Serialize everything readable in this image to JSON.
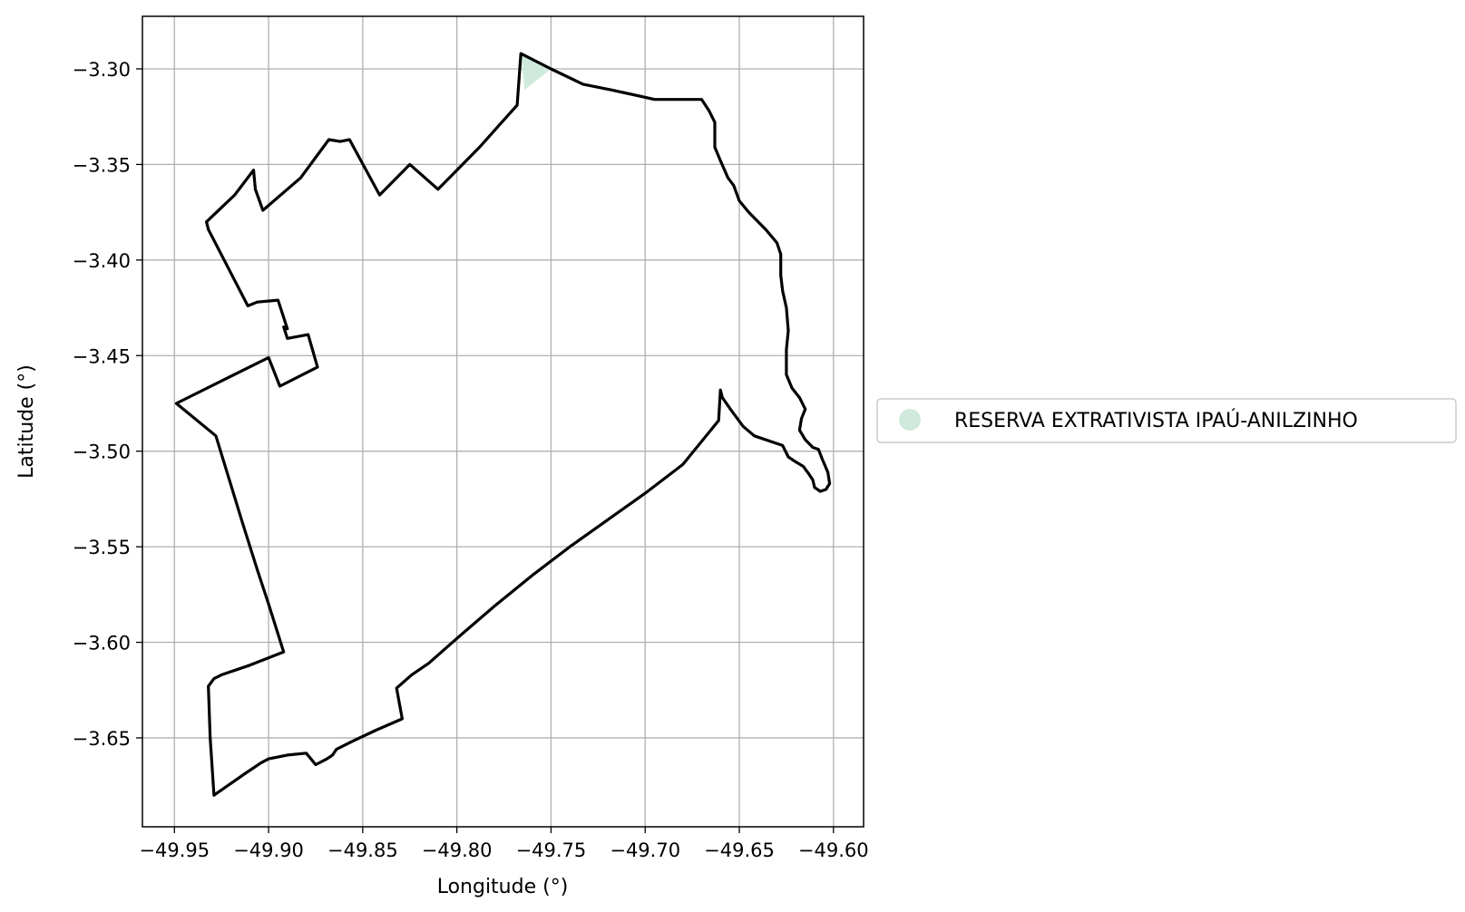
{
  "chart_data": {
    "type": "map",
    "xlabel": "Longitude (°)",
    "ylabel": "Latitude (°)",
    "xlim": [
      -49.967,
      -49.584
    ],
    "ylim": [
      -3.6965,
      -3.2725
    ],
    "x_ticks": [
      -49.95,
      -49.9,
      -49.85,
      -49.8,
      -49.75,
      -49.7,
      -49.65,
      -49.6
    ],
    "x_tick_labels": [
      "−49.95",
      "−49.90",
      "−49.85",
      "−49.80",
      "−49.75",
      "−49.70",
      "−49.65",
      "−49.60"
    ],
    "y_ticks": [
      -3.3,
      -3.35,
      -3.4,
      -3.45,
      -3.5,
      -3.55,
      -3.6,
      -3.65
    ],
    "y_tick_labels": [
      "−3.30",
      "−3.35",
      "−3.40",
      "−3.45",
      "−3.50",
      "−3.55",
      "−3.60",
      "−3.65"
    ],
    "grid": true,
    "legend": {
      "placement": "right",
      "entries": [
        {
          "name": "RESERVA EXTRATIVISTA IPAÚ-ANILZINHO",
          "color": "#cfeadc"
        }
      ]
    },
    "fill_color": "#cfeadc",
    "outline_color": "#000000",
    "filled_area": [
      [
        -49.764,
        -3.311
      ],
      [
        -49.766,
        -3.292
      ],
      [
        -49.75,
        -3.3
      ]
    ],
    "outline": [
      [
        -49.766,
        -3.292
      ],
      [
        -49.75,
        -3.3
      ],
      [
        -49.733,
        -3.308
      ],
      [
        -49.718,
        -3.311
      ],
      [
        -49.704,
        -3.314
      ],
      [
        -49.695,
        -3.316
      ],
      [
        -49.67,
        -3.316
      ],
      [
        -49.666,
        -3.322
      ],
      [
        -49.663,
        -3.328
      ],
      [
        -49.663,
        -3.341
      ],
      [
        -49.66,
        -3.348
      ],
      [
        -49.656,
        -3.357
      ],
      [
        -49.653,
        -3.361
      ],
      [
        -49.65,
        -3.369
      ],
      [
        -49.645,
        -3.375
      ],
      [
        -49.636,
        -3.384
      ],
      [
        -49.63,
        -3.391
      ],
      [
        -49.628,
        -3.397
      ],
      [
        -49.628,
        -3.408
      ],
      [
        -49.627,
        -3.416
      ],
      [
        -49.625,
        -3.425
      ],
      [
        -49.624,
        -3.437
      ],
      [
        -49.625,
        -3.447
      ],
      [
        -49.625,
        -3.46
      ],
      [
        -49.622,
        -3.467
      ],
      [
        -49.618,
        -3.472
      ],
      [
        -49.615,
        -3.478
      ],
      [
        -49.617,
        -3.483
      ],
      [
        -49.618,
        -3.489
      ],
      [
        -49.615,
        -3.494
      ],
      [
        -49.611,
        -3.498
      ],
      [
        -49.608,
        -3.499
      ],
      [
        -49.606,
        -3.504
      ],
      [
        -49.603,
        -3.511
      ],
      [
        -49.602,
        -3.517
      ],
      [
        -49.604,
        -3.52
      ],
      [
        -49.607,
        -3.521
      ],
      [
        -49.61,
        -3.519
      ],
      [
        -49.611,
        -3.515
      ],
      [
        -49.613,
        -3.512
      ],
      [
        -49.616,
        -3.508
      ],
      [
        -49.621,
        -3.505
      ],
      [
        -49.624,
        -3.503
      ],
      [
        -49.627,
        -3.497
      ],
      [
        -49.642,
        -3.492
      ],
      [
        -49.648,
        -3.487
      ],
      [
        -49.654,
        -3.479
      ],
      [
        -49.659,
        -3.472
      ],
      [
        -49.66,
        -3.468
      ],
      [
        -49.661,
        -3.484
      ],
      [
        -49.68,
        -3.507
      ],
      [
        -49.7,
        -3.522
      ],
      [
        -49.72,
        -3.536
      ],
      [
        -49.74,
        -3.55
      ],
      [
        -49.76,
        -3.565
      ],
      [
        -49.78,
        -3.581
      ],
      [
        -49.8,
        -3.598
      ],
      [
        -49.815,
        -3.611
      ],
      [
        -49.824,
        -3.617
      ],
      [
        -49.832,
        -3.624
      ],
      [
        -49.829,
        -3.64
      ],
      [
        -49.843,
        -3.646
      ],
      [
        -49.856,
        -3.652
      ],
      [
        -49.864,
        -3.656
      ],
      [
        -49.866,
        -3.659
      ],
      [
        -49.869,
        -3.661
      ],
      [
        -49.875,
        -3.664
      ],
      [
        -49.88,
        -3.658
      ],
      [
        -49.89,
        -3.659
      ],
      [
        -49.9,
        -3.661
      ],
      [
        -49.904,
        -3.663
      ],
      [
        -49.913,
        -3.669
      ],
      [
        -49.929,
        -3.68
      ],
      [
        -49.931,
        -3.65
      ],
      [
        -49.932,
        -3.623
      ],
      [
        -49.929,
        -3.619
      ],
      [
        -49.925,
        -3.617
      ],
      [
        -49.91,
        -3.612
      ],
      [
        -49.892,
        -3.605
      ],
      [
        -49.9,
        -3.58
      ],
      [
        -49.906,
        -3.562
      ],
      [
        -49.914,
        -3.537
      ],
      [
        -49.928,
        -3.492
      ],
      [
        -49.949,
        -3.475
      ],
      [
        -49.9,
        -3.451
      ],
      [
        -49.894,
        -3.466
      ],
      [
        -49.874,
        -3.456
      ],
      [
        -49.879,
        -3.439
      ],
      [
        -49.89,
        -3.441
      ],
      [
        -49.892,
        -3.435
      ],
      [
        -49.89,
        -3.436
      ],
      [
        -49.895,
        -3.421
      ],
      [
        -49.906,
        -3.422
      ],
      [
        -49.911,
        -3.424
      ],
      [
        -49.932,
        -3.384
      ],
      [
        -49.933,
        -3.38
      ],
      [
        -49.918,
        -3.366
      ],
      [
        -49.908,
        -3.353
      ],
      [
        -49.907,
        -3.363
      ],
      [
        -49.903,
        -3.374
      ],
      [
        -49.883,
        -3.357
      ],
      [
        -49.868,
        -3.337
      ],
      [
        -49.862,
        -3.338
      ],
      [
        -49.857,
        -3.337
      ],
      [
        -49.841,
        -3.366
      ],
      [
        -49.825,
        -3.35
      ],
      [
        -49.81,
        -3.363
      ],
      [
        -49.797,
        -3.35
      ],
      [
        -49.788,
        -3.341
      ],
      [
        -49.778,
        -3.33
      ],
      [
        -49.768,
        -3.319
      ],
      [
        -49.766,
        -3.292
      ]
    ]
  }
}
